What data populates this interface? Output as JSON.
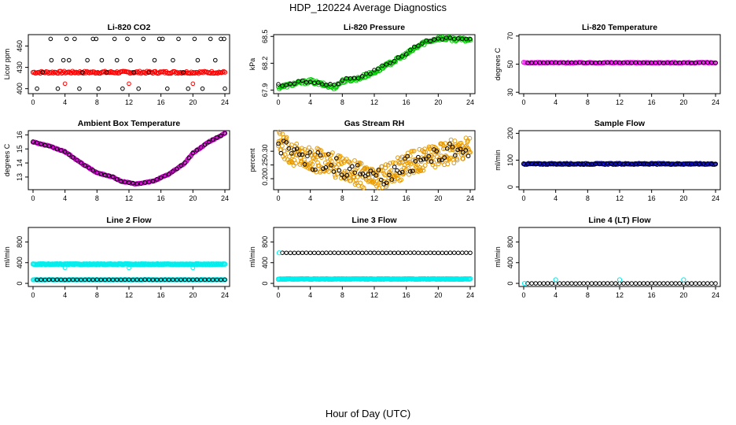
{
  "figure": {
    "title": "HDP_120224  Average Diagnostics",
    "xlabel": "Hour of Day (UTC)"
  },
  "chart_data": [
    {
      "type": "scatter",
      "title": "Li-820 CO2",
      "ylabel": "Licor ppm",
      "xlim": [
        0,
        24
      ],
      "xticks": [
        0,
        4,
        8,
        12,
        16,
        20,
        24
      ],
      "ylim": [
        393,
        476
      ],
      "yticks": [
        400,
        430,
        460
      ],
      "series": [
        {
          "name": "line-1",
          "color": "#ff0000",
          "kind": "band",
          "from": 0,
          "to": 24,
          "step": 0.15,
          "mid": 423,
          "amp": 1.5,
          "size": 2.6
        },
        {
          "name": "line-2",
          "color": "#000000",
          "kind": "points",
          "size": 2.3,
          "points": [
            [
              0.5,
              400
            ],
            [
              1.2,
              423
            ],
            [
              2.2,
              470
            ],
            [
              2.3,
              440
            ],
            [
              3.1,
              400
            ],
            [
              3.8,
              440
            ],
            [
              4.2,
              470
            ],
            [
              4.5,
              440
            ],
            [
              5.2,
              470
            ],
            [
              5.8,
              400
            ],
            [
              6.2,
              423
            ],
            [
              6.8,
              440
            ],
            [
              7.5,
              470
            ],
            [
              7.9,
              470
            ],
            [
              8.2,
              400
            ],
            [
              8.6,
              440
            ],
            [
              9.2,
              423
            ],
            [
              10.2,
              470
            ],
            [
              10.5,
              440
            ],
            [
              11.2,
              400
            ],
            [
              11.8,
              470
            ],
            [
              12.2,
              440
            ],
            [
              12.6,
              423
            ],
            [
              13.2,
              400
            ],
            [
              13.8,
              470
            ],
            [
              14.5,
              423
            ],
            [
              15.2,
              440
            ],
            [
              15.8,
              470
            ],
            [
              16.2,
              470
            ],
            [
              16.8,
              400
            ],
            [
              17.5,
              440
            ],
            [
              18.2,
              470
            ],
            [
              18.8,
              423
            ],
            [
              19.4,
              400
            ],
            [
              20.2,
              470
            ],
            [
              20.6,
              440
            ],
            [
              21.2,
              400
            ],
            [
              22.2,
              470
            ],
            [
              22.8,
              440
            ],
            [
              23.5,
              470
            ],
            [
              23.9,
              470
            ],
            [
              24.0,
              400
            ]
          ]
        },
        {
          "name": "line-1-outliers",
          "color": "#ff0000",
          "kind": "points",
          "size": 2.3,
          "points": [
            [
              4.0,
              407
            ],
            [
              12.0,
              407
            ],
            [
              20.0,
              407
            ]
          ]
        }
      ]
    },
    {
      "type": "scatter",
      "title": "Li-820 Pressure",
      "ylabel": "kPa",
      "xlim": [
        0,
        24
      ],
      "xticks": [
        0,
        4,
        8,
        12,
        16,
        20,
        24
      ],
      "ylim": [
        67.86,
        68.52
      ],
      "yticks": [
        67.9,
        68.2,
        68.5
      ],
      "series": [
        {
          "name": "pressure-green",
          "color": "#00cc00",
          "kind": "curve",
          "size": 2.6,
          "spread": 0.02,
          "step": 0.12,
          "knots": [
            [
              0,
              67.93
            ],
            [
              2,
              67.97
            ],
            [
              4,
              68.0
            ],
            [
              6,
              67.95
            ],
            [
              7,
              67.93
            ],
            [
              8,
              68.0
            ],
            [
              10,
              68.03
            ],
            [
              12,
              68.1
            ],
            [
              14,
              68.2
            ],
            [
              16,
              68.3
            ],
            [
              18,
              68.42
            ],
            [
              20,
              68.48
            ],
            [
              22,
              68.47
            ],
            [
              24,
              68.46
            ]
          ]
        },
        {
          "name": "pressure-black",
          "color": "#000000",
          "kind": "curve",
          "size": 2.3,
          "spread": 0.015,
          "step": 0.5,
          "knots": [
            [
              0,
              67.95
            ],
            [
              2,
              67.98
            ],
            [
              4,
              68.0
            ],
            [
              6,
              67.96
            ],
            [
              7,
              67.95
            ],
            [
              8,
              68.01
            ],
            [
              10,
              68.04
            ],
            [
              12,
              68.11
            ],
            [
              14,
              68.21
            ],
            [
              16,
              68.31
            ],
            [
              18,
              68.43
            ],
            [
              20,
              68.48
            ],
            [
              22,
              68.47
            ],
            [
              24,
              68.46
            ]
          ]
        }
      ]
    },
    {
      "type": "scatter",
      "title": "Li-820 Temperature",
      "ylabel": "degrees C",
      "xlim": [
        0,
        24
      ],
      "xticks": [
        0,
        4,
        8,
        12,
        16,
        20,
        24
      ],
      "ylim": [
        29,
        71
      ],
      "yticks": [
        30,
        50,
        70
      ],
      "series": [
        {
          "name": "temp-magenta",
          "color": "#ff00ff",
          "kind": "band",
          "from": 0,
          "to": 24,
          "step": 0.15,
          "mid": 51,
          "amp": 0.3,
          "size": 2.6
        },
        {
          "name": "temp-black",
          "color": "#000000",
          "kind": "band",
          "from": 0.5,
          "to": 24,
          "step": 0.5,
          "mid": 51,
          "amp": 0.2,
          "size": 2.3
        }
      ]
    },
    {
      "type": "scatter",
      "title": "Ambient Box Temperature",
      "ylabel": "degrees C",
      "xlim": [
        0,
        24
      ],
      "xticks": [
        0,
        4,
        8,
        12,
        16,
        20,
        24
      ],
      "ylim": [
        12.1,
        16.3
      ],
      "yticks": [
        13,
        14,
        15,
        16
      ],
      "series": [
        {
          "name": "box-magenta",
          "color": "#cc00cc",
          "kind": "curve",
          "size": 2.6,
          "spread": 0.03,
          "step": 0.12,
          "knots": [
            [
              0,
              15.5
            ],
            [
              2,
              15.2
            ],
            [
              4,
              14.8
            ],
            [
              6,
              14.0
            ],
            [
              8,
              13.3
            ],
            [
              10,
              13.0
            ],
            [
              11,
              12.7
            ],
            [
              13,
              12.5
            ],
            [
              15,
              12.7
            ],
            [
              17,
              13.2
            ],
            [
              19,
              14.0
            ],
            [
              20,
              14.7
            ],
            [
              22,
              15.5
            ],
            [
              24,
              16.1
            ]
          ]
        },
        {
          "name": "box-black",
          "color": "#000000",
          "kind": "curve",
          "size": 2.3,
          "spread": 0.02,
          "step": 0.5,
          "knots": [
            [
              0,
              15.5
            ],
            [
              2,
              15.2
            ],
            [
              4,
              14.8
            ],
            [
              6,
              14.0
            ],
            [
              8,
              13.3
            ],
            [
              10,
              13.0
            ],
            [
              11,
              12.7
            ],
            [
              13,
              12.5
            ],
            [
              15,
              12.7
            ],
            [
              17,
              13.2
            ],
            [
              19,
              14.0
            ],
            [
              20,
              14.7
            ],
            [
              22,
              15.5
            ],
            [
              24,
              16.1
            ]
          ]
        }
      ]
    },
    {
      "type": "scatter",
      "title": "Gas Stream RH",
      "ylabel": "percent",
      "xlim": [
        0,
        24
      ],
      "xticks": [
        0,
        4,
        8,
        12,
        16,
        20,
        24
      ],
      "ylim": [
        0.16,
        0.375
      ],
      "yticks": [
        0.2,
        0.25,
        0.3
      ],
      "series": [
        {
          "name": "rh-orange",
          "color": "#e69900",
          "kind": "curve",
          "size": 2.4,
          "spread": 0.045,
          "step": 0.06,
          "knots": [
            [
              0,
              0.33
            ],
            [
              2,
              0.29
            ],
            [
              4,
              0.27
            ],
            [
              6,
              0.26
            ],
            [
              8,
              0.24
            ],
            [
              10,
              0.22
            ],
            [
              12,
              0.19
            ],
            [
              14,
              0.22
            ],
            [
              16,
              0.25
            ],
            [
              18,
              0.27
            ],
            [
              20,
              0.29
            ],
            [
              22,
              0.3
            ],
            [
              24,
              0.32
            ]
          ]
        },
        {
          "name": "rh-black",
          "color": "#000000",
          "kind": "curve",
          "size": 2.3,
          "spread": 0.035,
          "step": 0.33,
          "knots": [
            [
              0,
              0.33
            ],
            [
              2,
              0.29
            ],
            [
              4,
              0.27
            ],
            [
              6,
              0.26
            ],
            [
              8,
              0.24
            ],
            [
              10,
              0.22
            ],
            [
              12,
              0.19
            ],
            [
              14,
              0.22
            ],
            [
              16,
              0.25
            ],
            [
              18,
              0.27
            ],
            [
              20,
              0.29
            ],
            [
              22,
              0.3
            ],
            [
              24,
              0.32
            ]
          ]
        }
      ]
    },
    {
      "type": "scatter",
      "title": "Sample Flow",
      "ylabel": "ml/min",
      "xlim": [
        0,
        24
      ],
      "xticks": [
        0,
        4,
        8,
        12,
        16,
        20,
        24
      ],
      "ylim": [
        -10,
        210
      ],
      "yticks": [
        0,
        100,
        200
      ],
      "series": [
        {
          "name": "flow-blue",
          "color": "#0000cc",
          "kind": "band",
          "from": 0,
          "to": 24,
          "step": 0.12,
          "mid": 86,
          "amp": 2,
          "size": 2.6
        },
        {
          "name": "flow-black",
          "color": "#000000",
          "kind": "band",
          "from": 0,
          "to": 24,
          "step": 0.5,
          "mid": 86,
          "amp": 1,
          "size": 2.3
        }
      ]
    },
    {
      "type": "scatter",
      "title": "Line 2 Flow",
      "ylabel": "ml/min",
      "xlim": [
        0,
        24
      ],
      "xticks": [
        0,
        4,
        8,
        12,
        16,
        20,
        24
      ],
      "ylim": [
        -60,
        1080
      ],
      "yticks": [
        0,
        400,
        800
      ],
      "series": [
        {
          "name": "l2-cyan-high",
          "color": "#00eeee",
          "kind": "band",
          "from": 0,
          "to": 24,
          "step": 0.12,
          "mid": 370,
          "amp": 6,
          "size": 2.8
        },
        {
          "name": "l2-cyan-low",
          "color": "#00eeee",
          "kind": "band",
          "from": 0,
          "to": 24,
          "step": 0.12,
          "mid": 70,
          "amp": 4,
          "size": 2.6
        },
        {
          "name": "l2-black",
          "color": "#000000",
          "kind": "band",
          "from": 0.5,
          "to": 24,
          "step": 0.5,
          "mid": 70,
          "amp": 2,
          "size": 2.3
        },
        {
          "name": "l2-cyan-dips",
          "color": "#00eeee",
          "kind": "points",
          "size": 2.4,
          "points": [
            [
              4.0,
              300
            ],
            [
              12.0,
              300
            ],
            [
              20.0,
              300
            ]
          ]
        }
      ]
    },
    {
      "type": "scatter",
      "title": "Line 3 Flow",
      "ylabel": "ml/min",
      "xlim": [
        0,
        24
      ],
      "xticks": [
        0,
        4,
        8,
        12,
        16,
        20,
        24
      ],
      "ylim": [
        -60,
        1080
      ],
      "yticks": [
        0,
        400,
        800
      ],
      "series": [
        {
          "name": "l3-cyan-low",
          "color": "#00eeee",
          "kind": "band",
          "from": 0,
          "to": 24,
          "step": 0.12,
          "mid": 85,
          "amp": 5,
          "size": 2.8
        },
        {
          "name": "l3-black-high",
          "color": "#000000",
          "kind": "band",
          "from": 0.5,
          "to": 24,
          "step": 0.5,
          "mid": 590,
          "amp": 2,
          "size": 2.3
        },
        {
          "name": "l3-cyan-start",
          "color": "#00eeee",
          "kind": "points",
          "size": 2.6,
          "points": [
            [
              0.1,
              590
            ]
          ]
        }
      ]
    },
    {
      "type": "scatter",
      "title": "Line 4 (LT) Flow",
      "ylabel": "ml/min",
      "xlim": [
        0,
        24
      ],
      "xticks": [
        0,
        4,
        8,
        12,
        16,
        20,
        24
      ],
      "ylim": [
        -60,
        1080
      ],
      "yticks": [
        0,
        400,
        800
      ],
      "series": [
        {
          "name": "l4-black",
          "color": "#000000",
          "kind": "band",
          "from": 0.5,
          "to": 24,
          "step": 0.5,
          "mid": 0,
          "amp": 1,
          "size": 2.3
        },
        {
          "name": "l4-cyan",
          "color": "#00eeee",
          "kind": "points",
          "size": 2.6,
          "points": [
            [
              0.1,
              0
            ],
            [
              4.0,
              70
            ],
            [
              12.0,
              70
            ],
            [
              20.0,
              70
            ]
          ]
        }
      ]
    }
  ]
}
